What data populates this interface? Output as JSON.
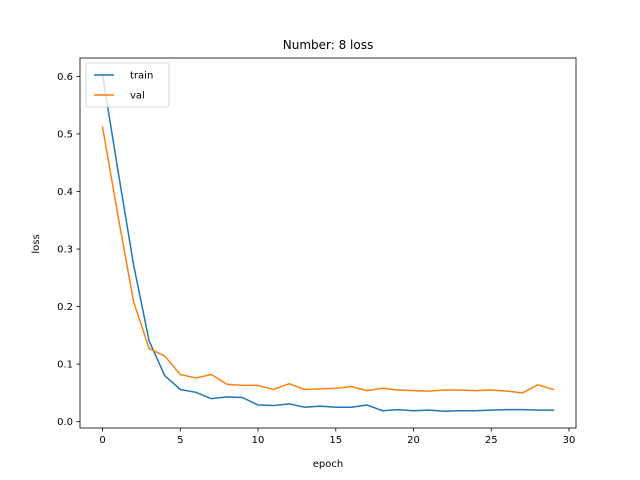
{
  "chart_data": {
    "type": "line",
    "title": "Number: 8 loss",
    "xlabel": "epoch",
    "ylabel": "loss",
    "xlim": [
      -1.45,
      30.45
    ],
    "ylim": [
      -0.011,
      0.632
    ],
    "xticks": [
      0,
      5,
      10,
      15,
      20,
      25,
      30
    ],
    "yticks": [
      0.0,
      0.1,
      0.2,
      0.3,
      0.4,
      0.5,
      0.6
    ],
    "xtick_labels": [
      "0",
      "5",
      "10",
      "15",
      "20",
      "25",
      "30"
    ],
    "ytick_labels": [
      "0.0",
      "0.1",
      "0.2",
      "0.3",
      "0.4",
      "0.5",
      "0.6"
    ],
    "grid": false,
    "legend_position": "top-left",
    "x": [
      0,
      1,
      2,
      3,
      4,
      5,
      6,
      7,
      8,
      9,
      10,
      11,
      12,
      13,
      14,
      15,
      16,
      17,
      18,
      19,
      20,
      21,
      22,
      23,
      24,
      25,
      26,
      27,
      28,
      29
    ],
    "series": [
      {
        "name": "train",
        "color": "#1f77b4",
        "values": [
          0.603,
          0.435,
          0.272,
          0.14,
          0.08,
          0.056,
          0.051,
          0.04,
          0.043,
          0.042,
          0.029,
          0.028,
          0.031,
          0.025,
          0.027,
          0.025,
          0.025,
          0.029,
          0.019,
          0.021,
          0.019,
          0.02,
          0.018,
          0.019,
          0.019,
          0.02,
          0.021,
          0.021,
          0.02,
          0.02
        ]
      },
      {
        "name": "val",
        "color": "#ff7f0e",
        "values": [
          0.512,
          0.357,
          0.208,
          0.127,
          0.114,
          0.082,
          0.076,
          0.082,
          0.065,
          0.063,
          0.063,
          0.056,
          0.066,
          0.056,
          0.057,
          0.058,
          0.061,
          0.054,
          0.058,
          0.055,
          0.054,
          0.053,
          0.055,
          0.055,
          0.054,
          0.055,
          0.053,
          0.05,
          0.064,
          0.056
        ]
      }
    ]
  }
}
